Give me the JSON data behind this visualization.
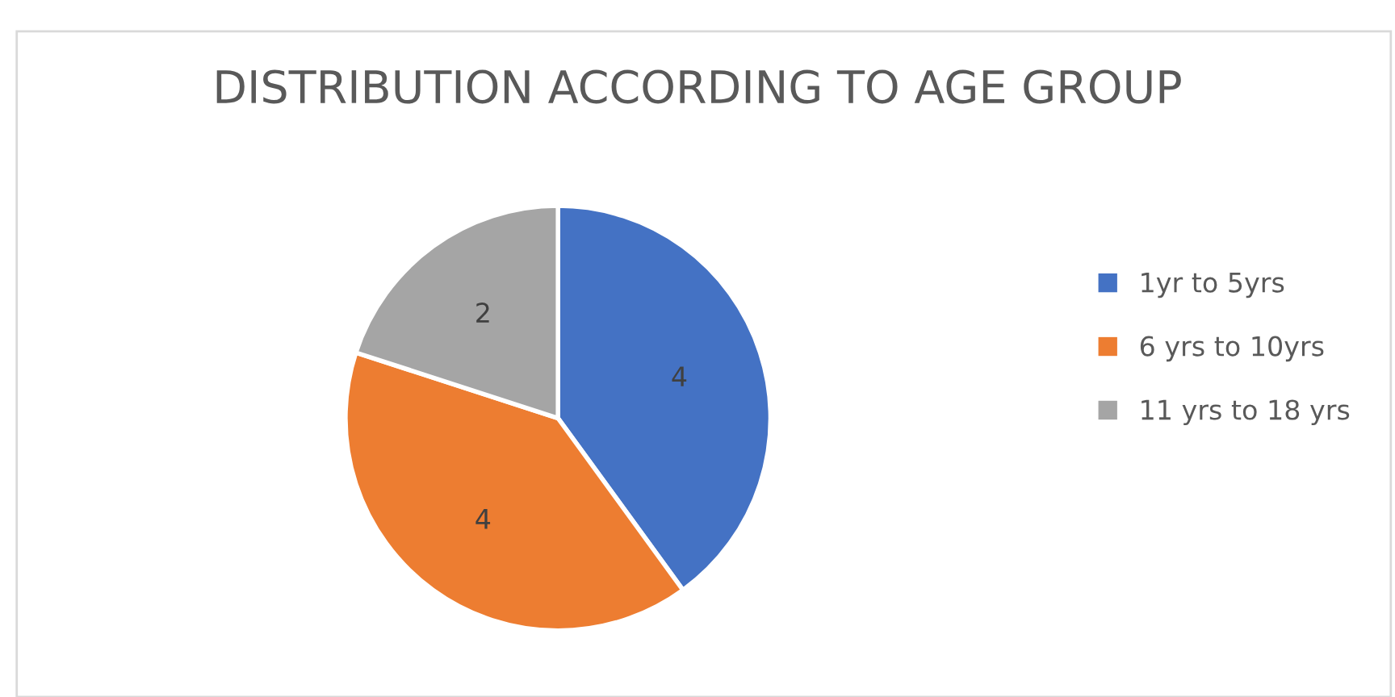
{
  "chart_data": {
    "type": "pie",
    "title": "DISTRIBUTION ACCORDING TO AGE GROUP",
    "categories": [
      "1yr to 5yrs",
      "6 yrs to 10yrs",
      "11 yrs to 18 yrs"
    ],
    "values": [
      4,
      4,
      2
    ],
    "colors": [
      "#4472c4",
      "#ed7d31",
      "#a5a5a5"
    ],
    "data_labels": true,
    "legend": "right"
  }
}
